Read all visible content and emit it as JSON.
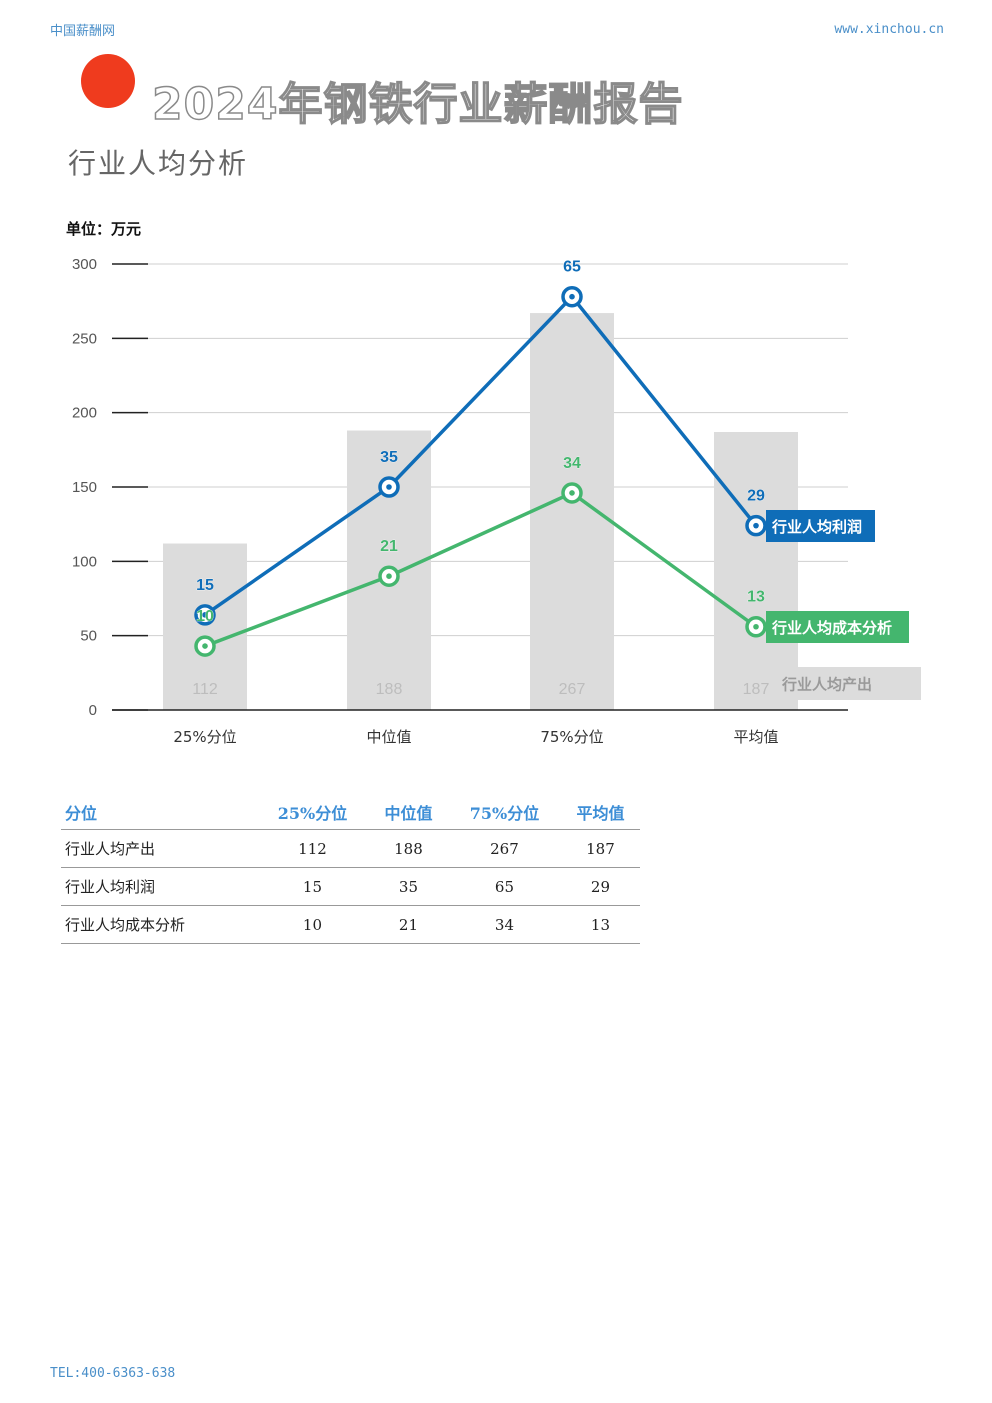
{
  "header": {
    "site_name": "中国薪酬网",
    "site_url": "www.xinchou.cn"
  },
  "report_title": "2024年钢铁行业薪酬报告",
  "section_title": "行业人均分析",
  "unit_label": "单位：万元",
  "colors": {
    "accent_dot": "#ef3b1e",
    "bar": "#dcdcdc",
    "profit_line": "#0f6db8",
    "cost_line": "#44b66e",
    "table_header": "#3d8ed6"
  },
  "chart_data": {
    "type": "bar",
    "categories": [
      "25%分位",
      "中位值",
      "75%分位",
      "平均值"
    ],
    "ylim": [
      0,
      300
    ],
    "yticks": [
      0,
      50,
      100,
      150,
      200,
      250,
      300
    ],
    "grid": true,
    "series": [
      {
        "name": "行业人均产出",
        "kind": "bar",
        "values": [
          112,
          188,
          267,
          187
        ],
        "labels": [
          "112",
          "188",
          "267",
          "187"
        ]
      },
      {
        "name": "行业人均利润",
        "kind": "line",
        "values": [
          64,
          150,
          278,
          124
        ],
        "labels": [
          "15",
          "35",
          "65",
          "29"
        ]
      },
      {
        "name": "行业人均成本分析",
        "kind": "line",
        "values": [
          43,
          90,
          146,
          56
        ],
        "labels": [
          "10",
          "21",
          "34",
          "13"
        ]
      }
    ]
  },
  "table": {
    "headers": [
      "分位",
      "25%分位",
      "中位值",
      "75%分位",
      "平均值"
    ],
    "rows": [
      {
        "label": "行业人均产出",
        "values": [
          "112",
          "188",
          "267",
          "187"
        ]
      },
      {
        "label": "行业人均利润",
        "values": [
          "15",
          "35",
          "65",
          "29"
        ]
      },
      {
        "label": "行业人均成本分析",
        "values": [
          "10",
          "21",
          "34",
          "13"
        ]
      }
    ]
  },
  "footer": {
    "tel": "TEL:400-6363-638"
  }
}
